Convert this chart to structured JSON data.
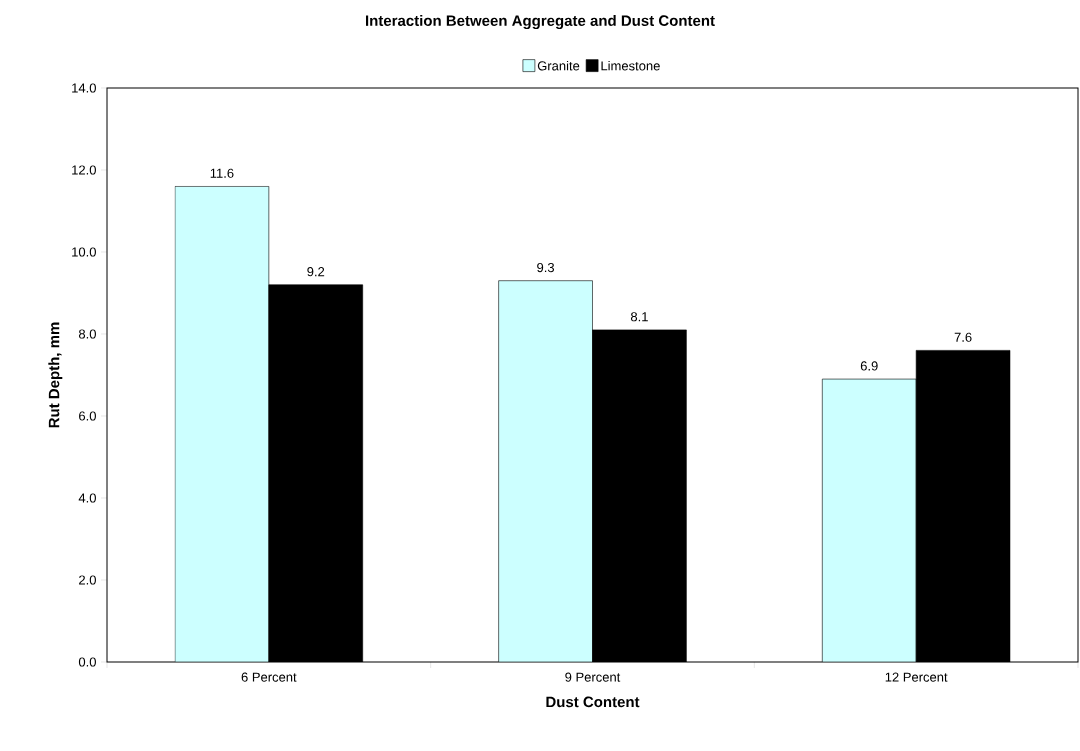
{
  "chart_data": {
    "type": "bar",
    "title": "Interaction Between Aggregate and Dust Content",
    "xlabel": "Dust Content",
    "ylabel": "Rut Depth, mm",
    "categories": [
      "6 Percent",
      "9 Percent",
      "12 Percent"
    ],
    "series": [
      {
        "name": "Granite",
        "color": "#ccffff",
        "values": [
          11.6,
          9.3,
          6.9
        ]
      },
      {
        "name": "Limestone",
        "color": "#000000",
        "values": [
          9.2,
          8.1,
          7.6
        ]
      }
    ],
    "ylim": [
      0,
      14
    ],
    "yticks": [
      {
        "value": 0,
        "label": "0.0"
      },
      {
        "value": 2,
        "label": "2.0"
      },
      {
        "value": 4,
        "label": "4.0"
      },
      {
        "value": 6,
        "label": "6.0"
      },
      {
        "value": 8,
        "label": "8.0"
      },
      {
        "value": 10,
        "label": "10.0"
      },
      {
        "value": 12,
        "label": "12.0"
      },
      {
        "value": 14,
        "label": "14.0"
      }
    ],
    "data_labels": true,
    "legend": "top",
    "grid": false
  }
}
